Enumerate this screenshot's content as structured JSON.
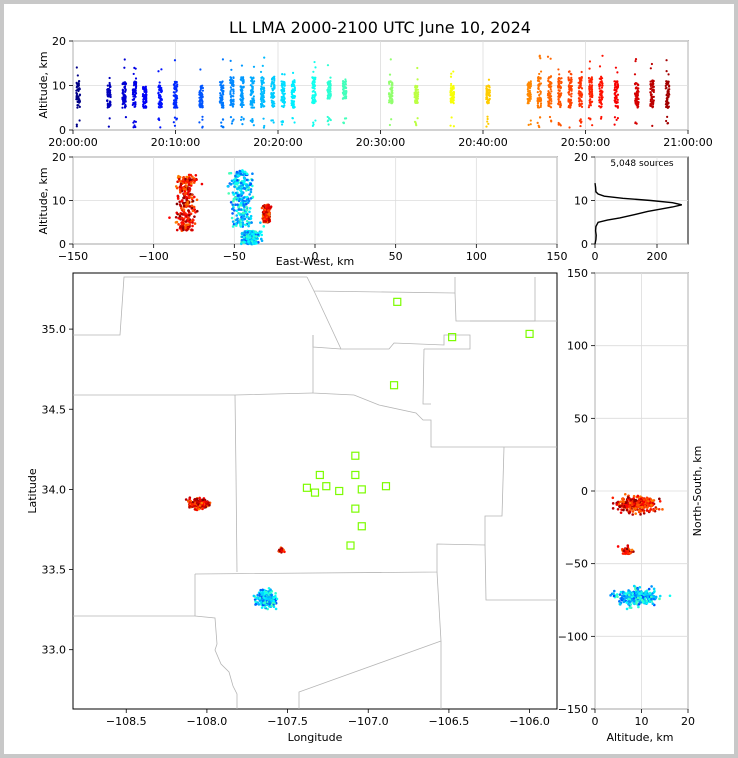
{
  "chart_data": [
    {
      "panel": "altitude-vs-time",
      "type": "scatter",
      "title": "LL LMA 2000-2100 UTC June 10, 2024",
      "ylabel": "Altitude, km",
      "xlim_minutes": [
        0,
        60
      ],
      "ylim": [
        0,
        20
      ],
      "x_ticks": [
        "20:00:00",
        "20:10:00",
        "20:20:00",
        "20:30:00",
        "20:40:00",
        "20:50:00",
        "21:00:00"
      ],
      "y_ticks": [
        "0",
        "10",
        "20"
      ],
      "grid": true,
      "colormap": "jet (by time)",
      "clusters": [
        {
          "minute": 0.5,
          "alt_min": 5,
          "alt_max": 11
        },
        {
          "minute": 3.5,
          "alt_min": 5,
          "alt_max": 11
        },
        {
          "minute": 5,
          "alt_min": 5,
          "alt_max": 11
        },
        {
          "minute": 6,
          "alt_min": 5,
          "alt_max": 11
        },
        {
          "minute": 7,
          "alt_min": 5,
          "alt_max": 10
        },
        {
          "minute": 8.5,
          "alt_min": 5,
          "alt_max": 10
        },
        {
          "minute": 10,
          "alt_min": 5,
          "alt_max": 11
        },
        {
          "minute": 12.5,
          "alt_min": 5,
          "alt_max": 10
        },
        {
          "minute": 14.5,
          "alt_min": 5,
          "alt_max": 11
        },
        {
          "minute": 15.5,
          "alt_min": 5,
          "alt_max": 12
        },
        {
          "minute": 16.5,
          "alt_min": 5,
          "alt_max": 12
        },
        {
          "minute": 17.5,
          "alt_min": 5,
          "alt_max": 12
        },
        {
          "minute": 18.5,
          "alt_min": 5,
          "alt_max": 12
        },
        {
          "minute": 19.5,
          "alt_min": 5,
          "alt_max": 12
        },
        {
          "minute": 20.5,
          "alt_min": 5,
          "alt_max": 11
        },
        {
          "minute": 21.5,
          "alt_min": 5,
          "alt_max": 11
        },
        {
          "minute": 23.5,
          "alt_min": 6,
          "alt_max": 12
        },
        {
          "minute": 25,
          "alt_min": 7,
          "alt_max": 11
        },
        {
          "minute": 26.5,
          "alt_min": 7,
          "alt_max": 11
        },
        {
          "minute": 31,
          "alt_min": 6,
          "alt_max": 11
        },
        {
          "minute": 33.5,
          "alt_min": 6,
          "alt_max": 10
        },
        {
          "minute": 37,
          "alt_min": 6,
          "alt_max": 10
        },
        {
          "minute": 40.5,
          "alt_min": 6,
          "alt_max": 10
        },
        {
          "minute": 44.5,
          "alt_min": 6,
          "alt_max": 11
        },
        {
          "minute": 45.5,
          "alt_min": 5,
          "alt_max": 12
        },
        {
          "minute": 46.5,
          "alt_min": 5,
          "alt_max": 12
        },
        {
          "minute": 47.5,
          "alt_min": 5,
          "alt_max": 13
        },
        {
          "minute": 48.5,
          "alt_min": 5,
          "alt_max": 12
        },
        {
          "minute": 49.5,
          "alt_min": 5,
          "alt_max": 12
        },
        {
          "minute": 50.5,
          "alt_min": 5,
          "alt_max": 12
        },
        {
          "minute": 51.5,
          "alt_min": 5,
          "alt_max": 12
        },
        {
          "minute": 53,
          "alt_min": 5,
          "alt_max": 11
        },
        {
          "minute": 55,
          "alt_min": 5,
          "alt_max": 11
        },
        {
          "minute": 56.5,
          "alt_min": 5,
          "alt_max": 11
        },
        {
          "minute": 58,
          "alt_min": 5,
          "alt_max": 11
        }
      ]
    },
    {
      "panel": "altitude-vs-east-west",
      "type": "scatter",
      "xlabel": "East-West, km",
      "ylabel": "Altitude, km",
      "xlim": [
        -150,
        150
      ],
      "ylim": [
        0,
        20
      ],
      "x_ticks": [
        "−150",
        "−100",
        "−50",
        "0",
        "50",
        "100",
        "150"
      ],
      "y_ticks": [
        "0",
        "10",
        "20"
      ],
      "grid": true,
      "clusters": [
        {
          "x_center": -80,
          "x_spread": 6,
          "alt_min": 3,
          "alt_max": 16,
          "color_phase": "late"
        },
        {
          "x_center": -45,
          "x_spread": 7,
          "alt_min": 4,
          "alt_max": 17,
          "color_phase": "mid"
        },
        {
          "x_center": -40,
          "x_spread": 5,
          "alt_min": 0,
          "alt_max": 3,
          "color_phase": "mid"
        },
        {
          "x_center": -30,
          "x_spread": 2,
          "alt_min": 5,
          "alt_max": 9,
          "color_phase": "late"
        }
      ]
    },
    {
      "panel": "altitude-histogram",
      "type": "line",
      "annotation": "5,048 sources",
      "xlim": [
        0,
        300
      ],
      "ylim": [
        0,
        20
      ],
      "x_ticks": [
        "0",
        "200"
      ],
      "y_ticks": [
        "0",
        "10",
        "20"
      ],
      "points": [
        [
          0,
          0
        ],
        [
          3,
          1
        ],
        [
          4,
          2
        ],
        [
          2,
          3
        ],
        [
          3,
          4
        ],
        [
          10,
          5
        ],
        [
          40,
          5.5
        ],
        [
          80,
          6
        ],
        [
          130,
          6.8
        ],
        [
          170,
          7.5
        ],
        [
          210,
          8
        ],
        [
          250,
          8.5
        ],
        [
          280,
          9
        ],
        [
          250,
          9.5
        ],
        [
          180,
          10
        ],
        [
          90,
          10.5
        ],
        [
          30,
          11
        ],
        [
          10,
          11.5
        ],
        [
          3,
          12
        ],
        [
          2,
          13
        ],
        [
          0,
          14
        ]
      ]
    },
    {
      "panel": "plan-view-map",
      "type": "scatter",
      "xlabel": "Longitude",
      "ylabel": "Latitude",
      "xlim": [
        -108.83,
        -105.83
      ],
      "ylim": [
        32.63,
        35.35
      ],
      "x_ticks": [
        "−108.5",
        "−108.0",
        "−107.5",
        "−107.0",
        "−106.5",
        "−106.0"
      ],
      "y_ticks": [
        "33.0",
        "33.5",
        "34.0",
        "34.5",
        "35.0"
      ],
      "stations_color": "#7cfc00",
      "stations": [
        [
          -106.82,
          35.17
        ],
        [
          -106.48,
          34.95
        ],
        [
          -106.0,
          34.97
        ],
        [
          -106.84,
          34.65
        ],
        [
          -107.08,
          34.21
        ],
        [
          -107.3,
          34.09
        ],
        [
          -107.08,
          34.09
        ],
        [
          -107.38,
          34.01
        ],
        [
          -107.26,
          34.02
        ],
        [
          -107.33,
          33.98
        ],
        [
          -107.18,
          33.99
        ],
        [
          -107.04,
          34.0
        ],
        [
          -106.89,
          34.02
        ],
        [
          -107.08,
          33.88
        ],
        [
          -107.04,
          33.77
        ],
        [
          -107.11,
          33.65
        ]
      ],
      "clusters": [
        {
          "lon": -108.05,
          "lat": 33.91,
          "spread_lon": 0.06,
          "spread_lat": 0.03,
          "color_phase": "late"
        },
        {
          "lon": -107.63,
          "lat": 33.32,
          "spread_lon": 0.07,
          "spread_lat": 0.05,
          "color_phase": "mid"
        },
        {
          "lon": -107.54,
          "lat": 33.62,
          "spread_lon": 0.015,
          "spread_lat": 0.015,
          "color_phase": "late"
        }
      ]
    },
    {
      "panel": "north-south-vs-altitude",
      "type": "scatter",
      "xlabel": "Altitude, km",
      "ylabel": "North-South, km",
      "xlim": [
        0,
        20
      ],
      "ylim": [
        -150,
        150
      ],
      "x_ticks": [
        "0",
        "10",
        "20"
      ],
      "y_ticks": [
        "−150",
        "−100",
        "−50",
        "0",
        "50",
        "100",
        "150"
      ],
      "grid": true,
      "clusters": [
        {
          "alt_center": 9,
          "alt_spread": 5,
          "ns_center": -9,
          "ns_spread": 6,
          "color_phase": "late"
        },
        {
          "alt_center": 7,
          "alt_spread": 1.5,
          "ns_center": -41,
          "ns_spread": 3,
          "color_phase": "late"
        },
        {
          "alt_center": 9,
          "alt_spread": 5,
          "ns_center": -73,
          "ns_spread": 6,
          "color_phase": "mid"
        }
      ]
    }
  ]
}
